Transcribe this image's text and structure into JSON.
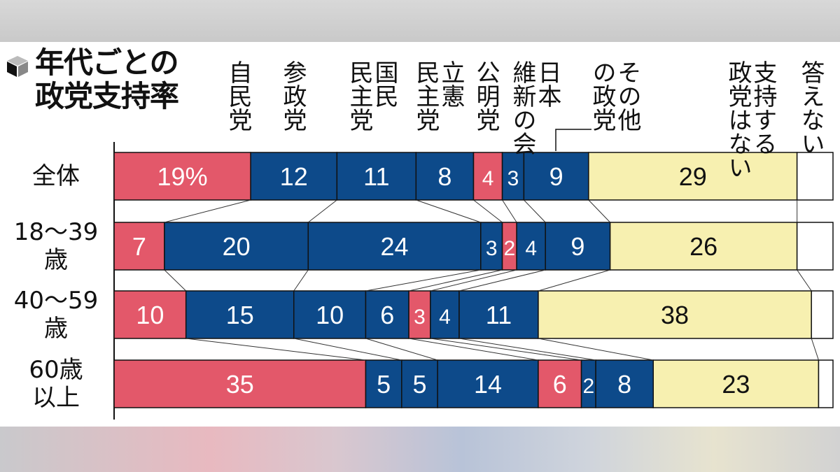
{
  "title": "年代ごとの\n政党支持率",
  "chart_data": {
    "type": "bar",
    "stacked": true,
    "orientation": "horizontal",
    "title": "年代ごとの政党支持率",
    "unit": "%",
    "categories": [
      "全体",
      "18〜39\n歳",
      "40〜59\n歳",
      "60歳\n以上"
    ],
    "series": [
      {
        "name": "自民党",
        "color": "#e3586a",
        "values": [
          19,
          7,
          10,
          35
        ]
      },
      {
        "name": "参政党",
        "color": "#0d4a8a",
        "values": [
          12,
          20,
          15,
          5
        ]
      },
      {
        "name": "国民\n民主党",
        "color": "#0d4a8a",
        "values": [
          11,
          24,
          10,
          5
        ]
      },
      {
        "name": "立憲\n民主党",
        "color": "#0d4a8a",
        "values": [
          8,
          3,
          6,
          14
        ]
      },
      {
        "name": "公明党",
        "color": "#e3586a",
        "values": [
          4,
          2,
          3,
          6
        ]
      },
      {
        "name": "日本\n維新の会",
        "color": "#0d4a8a",
        "values": [
          3,
          4,
          4,
          2
        ]
      },
      {
        "name": "その他\nの政党",
        "color": "#0d4a8a",
        "values": [
          9,
          9,
          11,
          8
        ]
      },
      {
        "name": "支持する\n政党はない",
        "color": "#f7f0b0",
        "values": [
          29,
          26,
          38,
          23
        ]
      },
      {
        "name": "答えない",
        "color": "#ffffff",
        "values": [
          5,
          5,
          3,
          2
        ]
      }
    ],
    "first_label_suffix": "%",
    "xlim": [
      0,
      100
    ]
  }
}
